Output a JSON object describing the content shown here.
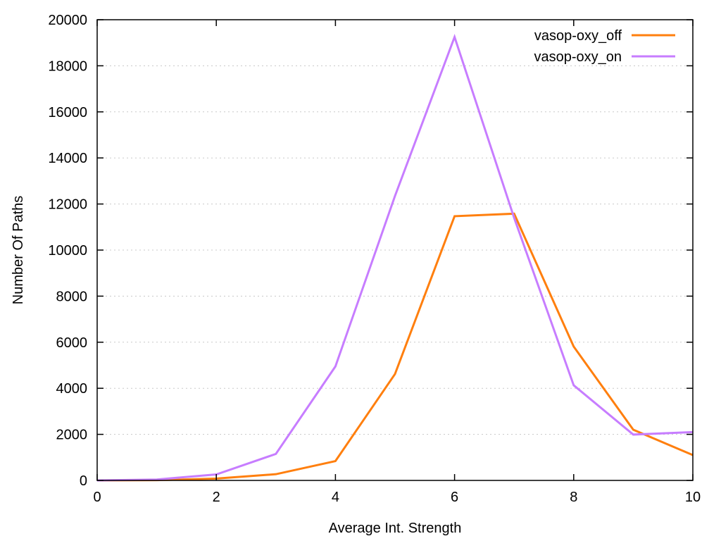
{
  "chart_data": {
    "type": "line",
    "title": "",
    "xlabel": "Average Int. Strength",
    "ylabel": "Number Of Paths",
    "xlim": [
      0,
      10
    ],
    "ylim": [
      0,
      20000
    ],
    "xticks": [
      "0",
      "2",
      "4",
      "6",
      "8",
      "10"
    ],
    "xtick_values": [
      0,
      2,
      4,
      6,
      8,
      10
    ],
    "yticks": [
      "0",
      "2000",
      "4000",
      "6000",
      "8000",
      "10000",
      "12000",
      "14000",
      "16000",
      "18000",
      "20000"
    ],
    "ytick_values": [
      0,
      2000,
      4000,
      6000,
      8000,
      10000,
      12000,
      14000,
      16000,
      18000,
      20000
    ],
    "grid": "horizontal dotted",
    "legend_position": "top-right",
    "x": [
      0,
      1,
      2,
      3,
      4,
      5,
      6,
      7,
      8,
      9,
      10
    ],
    "series": [
      {
        "name": "vasop-oxy_off",
        "color": "#ff7f0e",
        "values": [
          0,
          10,
          80,
          270,
          840,
          4620,
          11470,
          11580,
          5810,
          2200,
          1100
        ]
      },
      {
        "name": "vasop-oxy_on",
        "color": "#c77dff",
        "values": [
          0,
          40,
          260,
          1150,
          4950,
          12350,
          19250,
          11400,
          4130,
          1990,
          2100
        ]
      }
    ]
  }
}
